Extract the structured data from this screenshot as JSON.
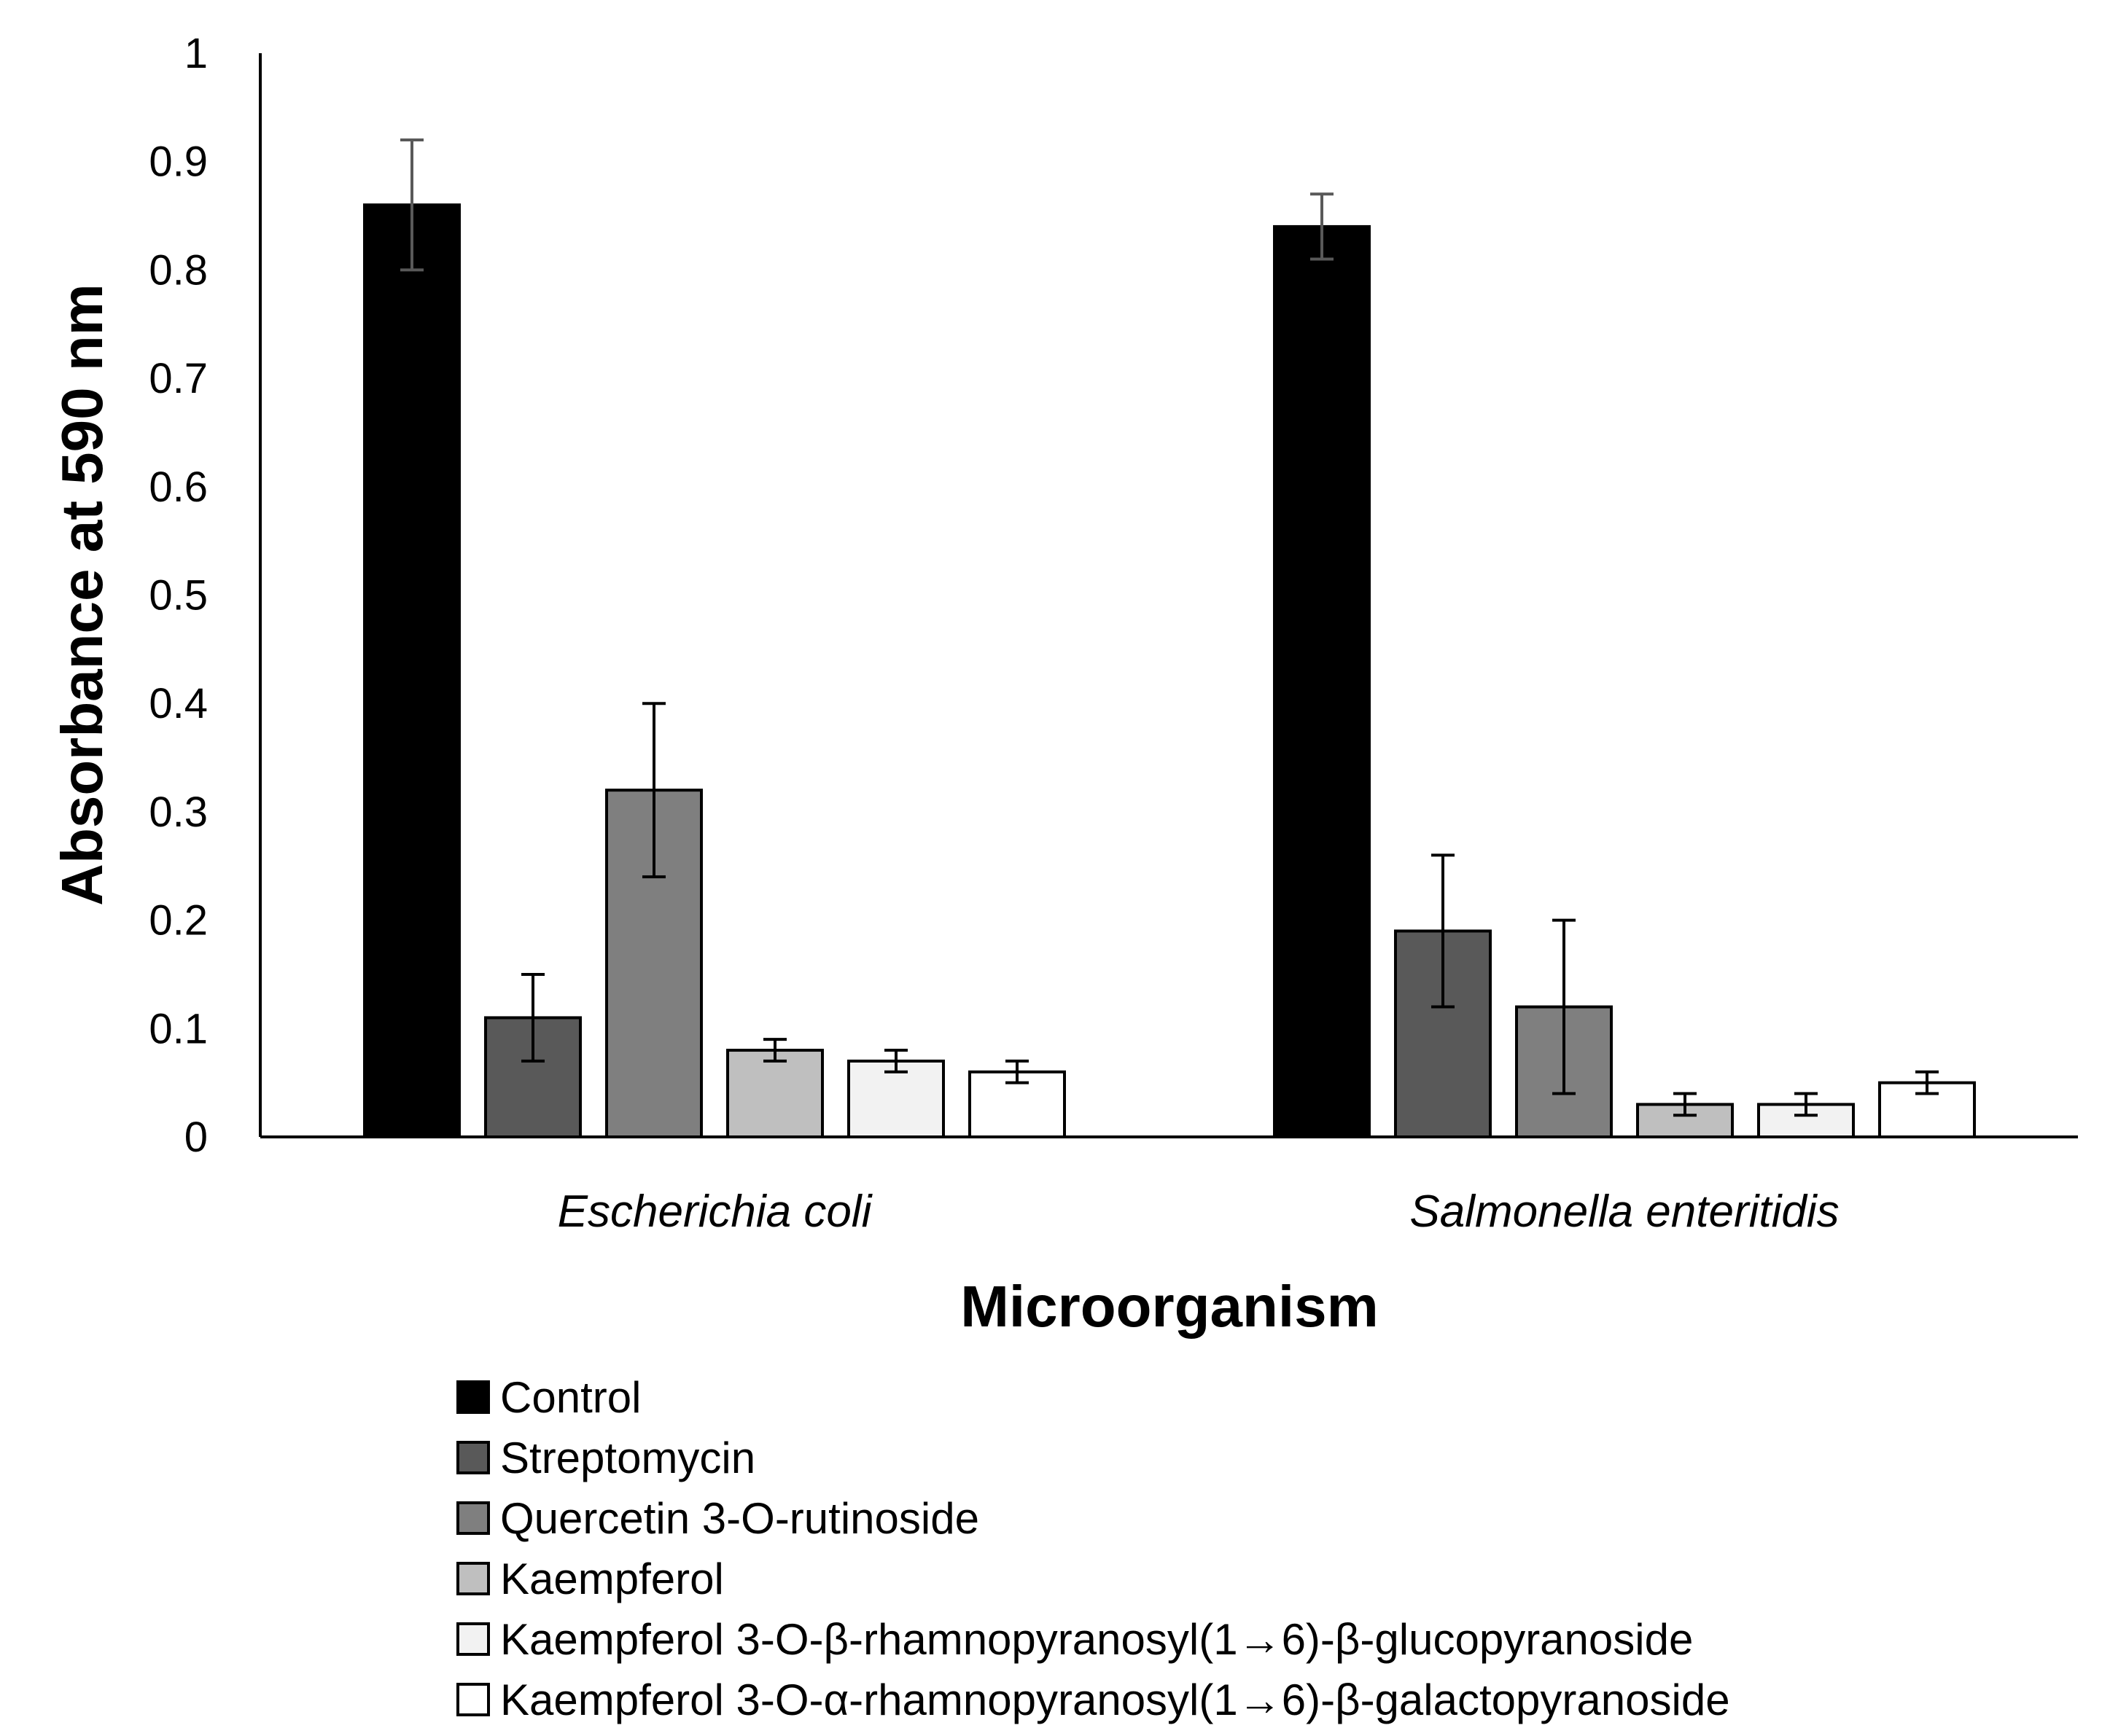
{
  "chart_data": {
    "type": "bar",
    "title": "",
    "xlabel": "Microorganism",
    "ylabel": "Absorbance at 590 nm",
    "ylim": [
      0,
      1
    ],
    "yticks": [
      "0",
      "0.1",
      "0.2",
      "0.3",
      "0.4",
      "0.5",
      "0.6",
      "0.7",
      "0.8",
      "0.9",
      "1"
    ],
    "categories": [
      "Escherichia coli",
      "Salmonella enteritidis"
    ],
    "grid": false,
    "legend_position": "bottom",
    "series": [
      {
        "name": "Control",
        "color": "#000000",
        "values": [
          0.86,
          0.84
        ],
        "errors": [
          0.06,
          0.03
        ],
        "error_color": "#595959"
      },
      {
        "name": "Streptomycin",
        "color": "#595959",
        "values": [
          0.11,
          0.19
        ],
        "errors": [
          0.04,
          0.07
        ],
        "error_color": "#000000"
      },
      {
        "name": "Quercetin 3-O-rutinoside",
        "color": "#7f7f7f",
        "values": [
          0.32,
          0.12
        ],
        "errors": [
          0.08,
          0.08
        ],
        "error_color": "#000000"
      },
      {
        "name": "Kaempferol",
        "color": "#bfbfbf",
        "values": [
          0.08,
          0.03
        ],
        "errors": [
          0.01,
          0.01
        ],
        "error_color": "#000000"
      },
      {
        "name": "Kaempferol 3-O-β-rhamnopyranosyl(1→6)-β-glucopyranoside",
        "color": "#f2f2f2",
        "values": [
          0.07,
          0.03
        ],
        "errors": [
          0.01,
          0.01
        ],
        "error_color": "#000000"
      },
      {
        "name": "Kaempferol 3-O-α-rhamnopyranosyl(1→6)-β-galactopyranoside",
        "color": "#ffffff",
        "values": [
          0.06,
          0.05
        ],
        "errors": [
          0.01,
          0.01
        ],
        "error_color": "#000000"
      }
    ]
  }
}
